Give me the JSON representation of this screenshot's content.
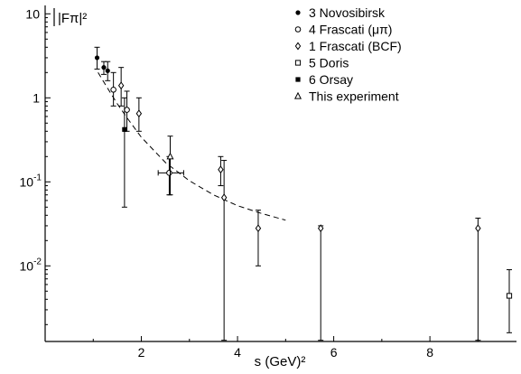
{
  "chart_data": {
    "type": "scatter",
    "title": "",
    "xlabel": "s (GeV)²",
    "ylabel": "|Fπ|²",
    "xlim": [
      0,
      9.8
    ],
    "ylim_log10": [
      -2.9,
      1.1
    ],
    "y_scale": "log",
    "grid": false,
    "legend_position": "top-right",
    "x_ticks": [
      {
        "value": 2,
        "label": "2"
      },
      {
        "value": 4,
        "label": "4"
      },
      {
        "value": 6,
        "label": "6"
      },
      {
        "value": 8,
        "label": "8"
      }
    ],
    "y_ticks": [
      {
        "value": 10,
        "base": "10",
        "exp": ""
      },
      {
        "value": 1,
        "base": "1",
        "exp": ""
      },
      {
        "value": 0.1,
        "base": "10",
        "exp": "-1"
      },
      {
        "value": 0.01,
        "base": "10",
        "exp": "-2"
      }
    ],
    "series": [
      {
        "name": "3 Novosibirsk",
        "marker": "dot",
        "points": [
          {
            "x": 1.08,
            "y": 3.0,
            "ylo": 2.2,
            "yhi": 4.0
          },
          {
            "x": 1.22,
            "y": 2.3,
            "ylo": 1.9,
            "yhi": 2.7
          },
          {
            "x": 1.3,
            "y": 2.1,
            "ylo": 1.6,
            "yhi": 2.7
          }
        ]
      },
      {
        "name": "4 Frascati (μπ)",
        "marker": "circle",
        "points": [
          {
            "x": 1.42,
            "y": 1.25,
            "ylo": 0.8,
            "yhi": 2.0
          },
          {
            "x": 1.7,
            "y": 0.72,
            "ylo": 0.4,
            "yhi": 1.2
          },
          {
            "x": 2.58,
            "y": 0.128,
            "ylo": 0.07,
            "yhi": 0.2,
            "xlo": 2.35,
            "xhi": 2.88
          }
        ]
      },
      {
        "name": "1 Frascati (BCF)",
        "marker": "diamond",
        "points": [
          {
            "x": 1.58,
            "y": 1.4,
            "ylo": 0.8,
            "yhi": 2.3
          },
          {
            "x": 1.95,
            "y": 0.65,
            "ylo": 0.4,
            "yhi": 1.0
          },
          {
            "x": 3.65,
            "y": 0.14,
            "ylo": 0.09,
            "yhi": 0.2
          },
          {
            "x": 3.72,
            "y": 0.065,
            "ylo": 0.0013,
            "yhi": 0.18
          },
          {
            "x": 4.43,
            "y": 0.028,
            "ylo": 0.01,
            "yhi": 0.046
          },
          {
            "x": 5.73,
            "y": 0.028,
            "ylo": 0.0013,
            "yhi": 0.03
          },
          {
            "x": 9.0,
            "y": 0.028,
            "ylo": 0.0013,
            "yhi": 0.037
          }
        ]
      },
      {
        "name": "5 Doris",
        "marker": "square",
        "points": [
          {
            "x": 9.65,
            "y": 0.0044,
            "ylo": 0.0016,
            "yhi": 0.009
          }
        ]
      },
      {
        "name": "6 Orsay",
        "marker": "filled-square",
        "points": [
          {
            "x": 1.65,
            "y": 0.42,
            "ylo": 0.05,
            "yhi": 1.0
          }
        ]
      },
      {
        "name": "This experiment",
        "marker": "triangle",
        "points": [
          {
            "x": 2.6,
            "y": 0.2,
            "ylo": 0.07,
            "yhi": 0.35
          }
        ]
      }
    ],
    "fit_curve": {
      "style": "dashed",
      "points": [
        [
          1.1,
          2.0
        ],
        [
          1.3,
          1.3
        ],
        [
          1.5,
          0.85
        ],
        [
          1.7,
          0.58
        ],
        [
          2.0,
          0.34
        ],
        [
          2.5,
          0.17
        ],
        [
          3.0,
          0.103
        ],
        [
          3.5,
          0.07
        ],
        [
          4.0,
          0.052
        ],
        [
          4.5,
          0.042
        ],
        [
          5.0,
          0.035
        ]
      ]
    }
  }
}
